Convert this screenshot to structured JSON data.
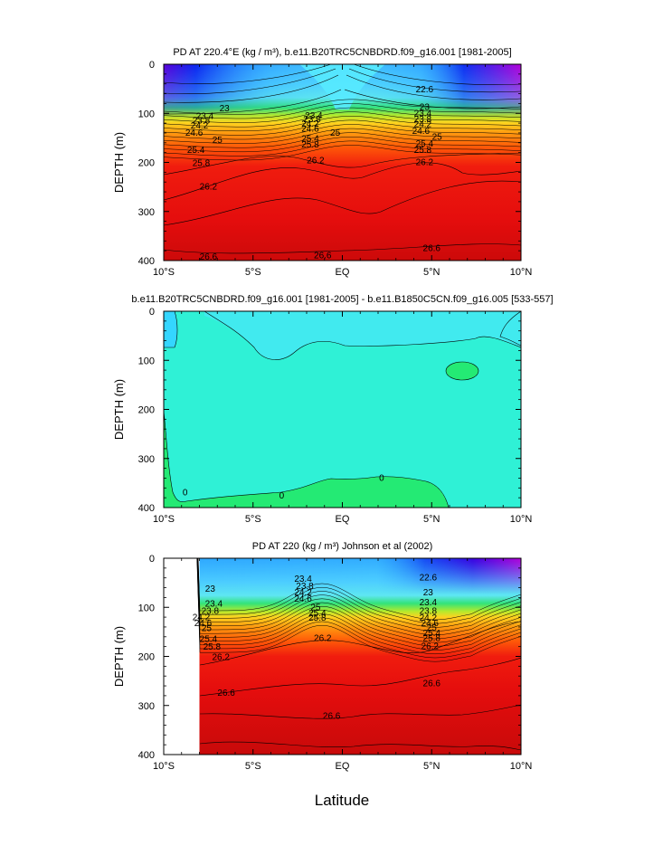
{
  "figure": {
    "xlabel": "Latitude",
    "x_ticklabels": [
      "10°S",
      "5°S",
      "EQ",
      "5°N",
      "10°N"
    ],
    "y_ticklabels": [
      "0",
      "100",
      "200",
      "300",
      "400"
    ]
  },
  "chart_data": [
    {
      "type": "heatmap",
      "title": "PD AT 220.4°E (kg / m³), b.e11.B20TRC5CNBDRD.f09_g16.001 [1981-2005]",
      "ylabel": "DEPTH (m)",
      "xlim": [
        -10,
        10
      ],
      "ylim": [
        400,
        0
      ],
      "contour_levels": [
        22.6,
        22.8,
        23.0,
        23.2,
        23.4,
        23.6,
        23.8,
        24.0,
        24.2,
        24.4,
        24.6,
        24.8,
        25.0,
        25.2,
        25.4,
        25.6,
        25.8,
        26.0,
        26.2,
        26.4,
        26.6
      ],
      "contour_labels": [
        {
          "text": "22.6",
          "x": 4.6,
          "y": 52
        },
        {
          "text": "23",
          "x": -6.6,
          "y": 90
        },
        {
          "text": "23",
          "x": 4.6,
          "y": 88
        },
        {
          "text": "23.4",
          "x": -7.7,
          "y": 106
        },
        {
          "text": "23.4",
          "x": -1.6,
          "y": 105
        },
        {
          "text": "23.4",
          "x": 4.5,
          "y": 100
        },
        {
          "text": "23.8",
          "x": -7.9,
          "y": 115
        },
        {
          "text": "23.8",
          "x": -1.7,
          "y": 112
        },
        {
          "text": "23.8",
          "x": 4.5,
          "y": 112
        },
        {
          "text": "24.2",
          "x": -8.0,
          "y": 125
        },
        {
          "text": "24.2",
          "x": -1.8,
          "y": 122
        },
        {
          "text": "24.2",
          "x": 4.5,
          "y": 123
        },
        {
          "text": "24.6",
          "x": -8.3,
          "y": 140
        },
        {
          "text": "24.6",
          "x": -1.8,
          "y": 132
        },
        {
          "text": "24.6",
          "x": 4.4,
          "y": 136
        },
        {
          "text": "25",
          "x": -7.0,
          "y": 155
        },
        {
          "text": "25",
          "x": -0.4,
          "y": 140
        },
        {
          "text": "25",
          "x": 5.3,
          "y": 148
        },
        {
          "text": "25.4",
          "x": -8.2,
          "y": 175
        },
        {
          "text": "25.4",
          "x": -1.8,
          "y": 152
        },
        {
          "text": "25.4",
          "x": 4.6,
          "y": 162
        },
        {
          "text": "25.8",
          "x": -7.9,
          "y": 202
        },
        {
          "text": "25.8",
          "x": -1.8,
          "y": 164
        },
        {
          "text": "25.8",
          "x": 4.5,
          "y": 175
        },
        {
          "text": "26.2",
          "x": -7.5,
          "y": 250
        },
        {
          "text": "26.2",
          "x": -1.5,
          "y": 196
        },
        {
          "text": "26.2",
          "x": 4.6,
          "y": 200
        },
        {
          "text": "26.6",
          "x": -7.5,
          "y": 393
        },
        {
          "text": "26.6",
          "x": -1.1,
          "y": 390
        },
        {
          "text": "26.6",
          "x": 5.0,
          "y": 375
        }
      ]
    },
    {
      "type": "heatmap",
      "title": "b.e11.B20TRC5CNBDRD.f09_g16.001 [1981-2005] - b.e11.B1850C5CN.f09_g16.005 [533-557]",
      "ylabel": "DEPTH (m)",
      "xlim": [
        -10,
        10
      ],
      "ylim": [
        400,
        0
      ],
      "contour_labels": [
        {
          "text": "0",
          "x": -8.8,
          "y": 370
        },
        {
          "text": "0",
          "x": -3.4,
          "y": 376
        },
        {
          "text": "0",
          "x": 2.2,
          "y": 340
        }
      ]
    },
    {
      "type": "heatmap",
      "title": "PD AT 220 (kg / m³) Johnson et al (2002)",
      "ylabel": "DEPTH (m)",
      "xlim": [
        -10,
        10
      ],
      "ylim": [
        400,
        0
      ],
      "data_start_latitude": -8,
      "contour_levels": [
        22.6,
        22.8,
        23.0,
        23.2,
        23.4,
        23.6,
        23.8,
        24.0,
        24.2,
        24.4,
        24.6,
        24.8,
        25.0,
        25.2,
        25.4,
        25.6,
        25.8,
        26.0,
        26.2,
        26.4,
        26.6
      ],
      "contour_labels": [
        {
          "text": "22.6",
          "x": 4.8,
          "y": 40
        },
        {
          "text": "23",
          "x": -7.4,
          "y": 63
        },
        {
          "text": "23",
          "x": 4.8,
          "y": 70
        },
        {
          "text": "23.4",
          "x": -2.2,
          "y": 42
        },
        {
          "text": "23.4",
          "x": -7.2,
          "y": 93
        },
        {
          "text": "23.4",
          "x": 4.8,
          "y": 90
        },
        {
          "text": "23.8",
          "x": -2.1,
          "y": 57
        },
        {
          "text": "23.8",
          "x": -7.4,
          "y": 108
        },
        {
          "text": "23.8",
          "x": 4.8,
          "y": 108
        },
        {
          "text": "24.2",
          "x": -2.2,
          "y": 70
        },
        {
          "text": "24.2",
          "x": -7.9,
          "y": 121
        },
        {
          "text": "24.2",
          "x": 4.8,
          "y": 122
        },
        {
          "text": "24.6",
          "x": -2.2,
          "y": 83
        },
        {
          "text": "24.6",
          "x": -7.8,
          "y": 133
        },
        {
          "text": "24.6",
          "x": 4.9,
          "y": 133
        },
        {
          "text": "25",
          "x": -1.5,
          "y": 100
        },
        {
          "text": "25",
          "x": -7.6,
          "y": 143
        },
        {
          "text": "25",
          "x": 5.0,
          "y": 142
        },
        {
          "text": "25.4",
          "x": -1.4,
          "y": 112
        },
        {
          "text": "25.4",
          "x": -7.5,
          "y": 165
        },
        {
          "text": "25.4",
          "x": 5.0,
          "y": 153
        },
        {
          "text": "25.8",
          "x": -1.4,
          "y": 122
        },
        {
          "text": "25.8",
          "x": -7.3,
          "y": 181
        },
        {
          "text": "25.8",
          "x": 5.0,
          "y": 163
        },
        {
          "text": "26.2",
          "x": -1.1,
          "y": 163
        },
        {
          "text": "26.2",
          "x": -6.8,
          "y": 202
        },
        {
          "text": "26.2",
          "x": 4.9,
          "y": 180
        },
        {
          "text": "26.6",
          "x": -6.5,
          "y": 275
        },
        {
          "text": "26.6",
          "x": -0.6,
          "y": 322
        },
        {
          "text": "26.6",
          "x": 5.0,
          "y": 255
        }
      ]
    }
  ]
}
